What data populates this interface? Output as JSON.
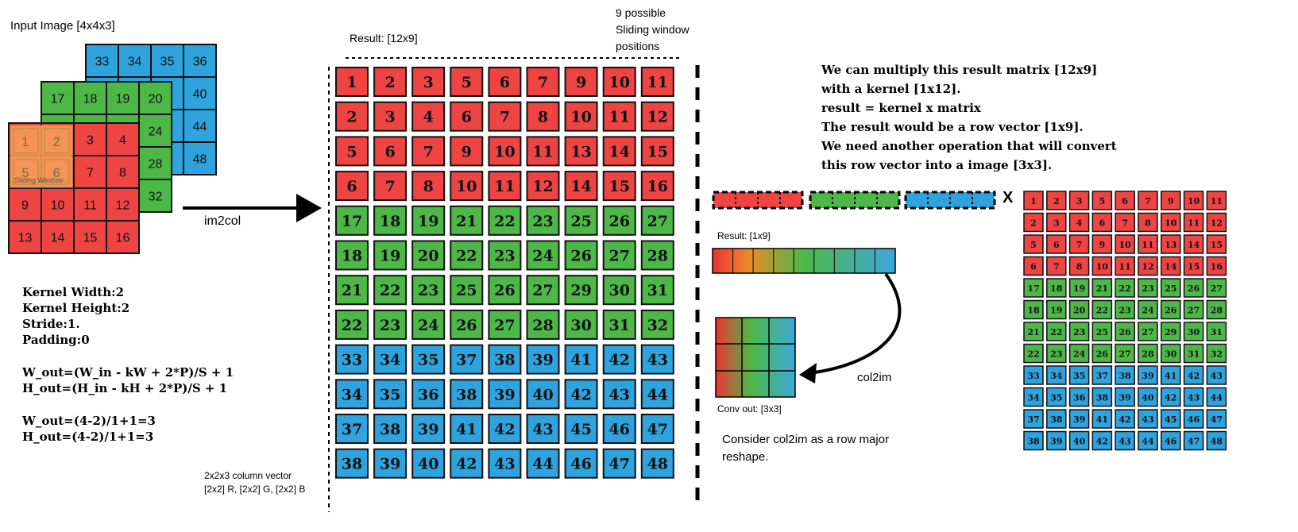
{
  "input_image": {
    "title": "Input Image [4x4x3]",
    "blue_layer": [
      "33",
      "34",
      "35",
      "36",
      "",
      "",
      "",
      "40",
      "",
      "",
      "",
      "44",
      "",
      "",
      "",
      "48"
    ],
    "green_layer": [
      "17",
      "18",
      "19",
      "20",
      "",
      "",
      "",
      "24",
      "",
      "",
      "",
      "28",
      "",
      "",
      "",
      "32"
    ],
    "red_layer": [
      "1",
      "2",
      "3",
      "4",
      "5",
      "6",
      "7",
      "8",
      "9",
      "10",
      "11",
      "12",
      "13",
      "14",
      "15",
      "16"
    ],
    "sliding_window_label": "Sliding Window"
  },
  "im2col_label": "im2col",
  "params": {
    "lines": [
      "Kernel Width:2",
      "Kernel Height:2",
      "Stride:1.",
      "Padding:0"
    ],
    "formulas": [
      "W_out=(W_in - kW + 2*P)/S + 1",
      "H_out=(H_in - kH + 2*P)/S + 1"
    ],
    "computed": [
      "W_out=(4-2)/1+1=3",
      "H_out=(4-2)/1+1=3"
    ]
  },
  "column_vector_note": [
    "2x2x3 column vector",
    "[2x2] R, [2x2] G, [2x2] B"
  ],
  "result_matrix": {
    "label": "Result: [12x9]",
    "positions_note": [
      "9 possible",
      "Sliding window",
      "positions"
    ],
    "rows": [
      [
        "1",
        "2",
        "3",
        "5",
        "6",
        "7",
        "9",
        "10",
        "11"
      ],
      [
        "2",
        "3",
        "4",
        "6",
        "7",
        "8",
        "10",
        "11",
        "12"
      ],
      [
        "5",
        "6",
        "7",
        "9",
        "10",
        "11",
        "13",
        "14",
        "15"
      ],
      [
        "6",
        "7",
        "8",
        "10",
        "11",
        "12",
        "14",
        "15",
        "16"
      ],
      [
        "17",
        "18",
        "19",
        "21",
        "22",
        "23",
        "25",
        "26",
        "27"
      ],
      [
        "18",
        "19",
        "20",
        "22",
        "23",
        "24",
        "26",
        "27",
        "28"
      ],
      [
        "21",
        "22",
        "23",
        "25",
        "26",
        "27",
        "29",
        "30",
        "31"
      ],
      [
        "22",
        "23",
        "24",
        "26",
        "27",
        "28",
        "30",
        "31",
        "32"
      ],
      [
        "33",
        "34",
        "35",
        "37",
        "38",
        "39",
        "41",
        "42",
        "43"
      ],
      [
        "34",
        "35",
        "36",
        "38",
        "39",
        "40",
        "42",
        "43",
        "44"
      ],
      [
        "37",
        "38",
        "39",
        "41",
        "42",
        "43",
        "45",
        "46",
        "47"
      ],
      [
        "38",
        "39",
        "40",
        "42",
        "43",
        "44",
        "46",
        "47",
        "48"
      ]
    ]
  },
  "explanation": [
    "We can multiply this result matrix [12x9]",
    "with a kernel [1x12].",
    "result = kernel x matrix",
    "The result would be a row vector [1x9].",
    "We need another operation that will convert",
    "this row vector into a image [3x3]."
  ],
  "multiply_symbol": "X",
  "row_vector_label": "Result: [1x9]",
  "col2im_label": "col2im",
  "conv_out_label": "Conv out: [3x3]",
  "reshape_note": [
    "Consider col2im as a row major",
    "reshape."
  ],
  "colors": {
    "red": "#ee4444",
    "green": "#4db848",
    "blue": "#2ea3dd",
    "orange": "#f4a259",
    "border": "#111111"
  }
}
